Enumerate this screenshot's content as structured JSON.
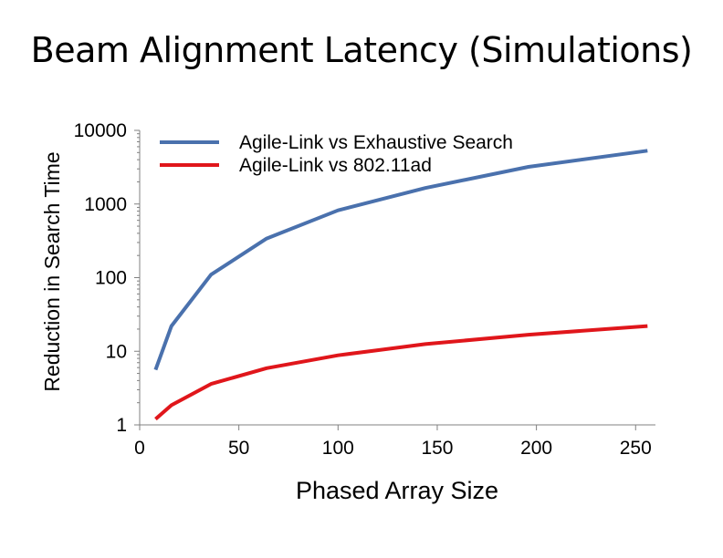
{
  "slide": {
    "title": "Beam Alignment Latency (Simulations)"
  },
  "chart_data": {
    "type": "line",
    "title": "Beam Alignment Latency (Simulations)",
    "xlabel": "Phased Array Size",
    "ylabel": "Reduction in Search Time",
    "xlim": [
      0,
      260
    ],
    "ylim": [
      1,
      10000
    ],
    "y_scale": "log",
    "x_ticks": [
      0,
      50,
      100,
      150,
      200,
      250
    ],
    "y_ticks": [
      1,
      10,
      100,
      1000,
      10000
    ],
    "x_tick_labels": [
      "0",
      "50",
      "100",
      "150",
      "200",
      "250"
    ],
    "y_tick_labels": [
      "1",
      "10",
      "100",
      "1000",
      "10000"
    ],
    "grid": false,
    "legend_position": "top",
    "series": [
      {
        "name": "Agile-Link vs Exhaustive Search",
        "color": "#4a71ad",
        "x": [
          8,
          16,
          36,
          64,
          100,
          144,
          196,
          256
        ],
        "y": [
          5.6,
          22,
          110,
          340,
          820,
          1650,
          3200,
          5300
        ]
      },
      {
        "name": "Agile-Link vs 802.11ad",
        "color": "#e0161b",
        "x": [
          8,
          16,
          36,
          64,
          100,
          144,
          196,
          256
        ],
        "y": [
          1.2,
          1.85,
          3.6,
          5.9,
          8.8,
          12.5,
          16.8,
          22
        ]
      }
    ]
  }
}
